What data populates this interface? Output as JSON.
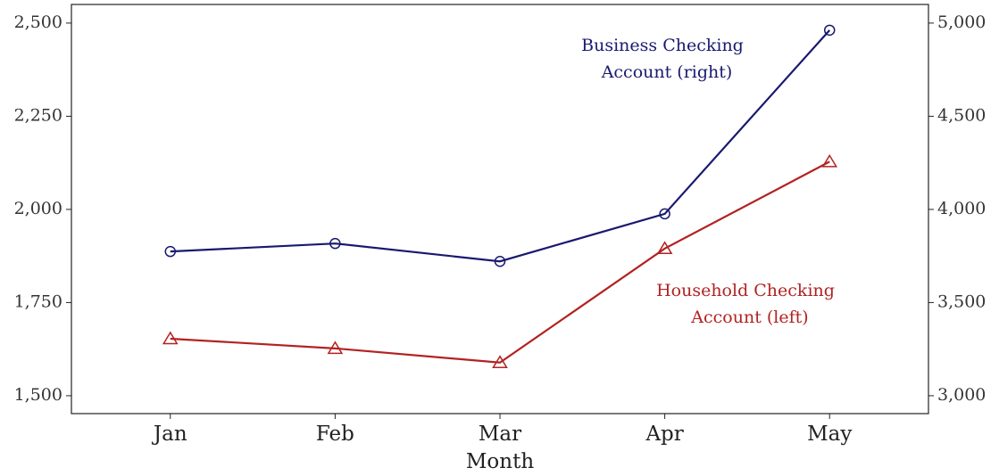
{
  "chart_data": {
    "type": "line",
    "x_label": "Month",
    "categories": [
      "Jan",
      "Feb",
      "Mar",
      "Apr",
      "May"
    ],
    "series": [
      {
        "name": "Household Checking Account (left)",
        "color": "#b22222",
        "marker": "triangle",
        "axis": "y",
        "values": [
          1653,
          1627,
          1589,
          1895,
          2128
        ]
      },
      {
        "name": "Business Checking Account (right)",
        "color": "#191970",
        "marker": "circle",
        "axis": "y2",
        "values": [
          3774,
          3817,
          3721,
          3976,
          4962
        ]
      }
    ],
    "annotations": [
      {
        "lines": [
          "Business Checking",
          "Account (right)"
        ],
        "color": "#191970",
        "series": 1
      },
      {
        "lines": [
          "Household Checking",
          "Account (left)"
        ],
        "color": "#b22222",
        "series": 0
      }
    ],
    "ylim": [
      1452,
      2550
    ],
    "yticks": [
      {
        "value": 1500,
        "label": "1,500"
      },
      {
        "value": 1750,
        "label": "1,750"
      },
      {
        "value": 2000,
        "label": "2,000"
      },
      {
        "value": 2250,
        "label": "2,250"
      },
      {
        "value": 2500,
        "label": "2,500"
      }
    ],
    "y2lim": [
      2904,
      5100
    ],
    "y2ticks": [
      {
        "value": 3000,
        "label": "3,000"
      },
      {
        "value": 3500,
        "label": "3,500"
      },
      {
        "value": 4000,
        "label": "4,000"
      },
      {
        "value": 4500,
        "label": "4,500"
      },
      {
        "value": 5000,
        "label": "5,000"
      }
    ]
  }
}
